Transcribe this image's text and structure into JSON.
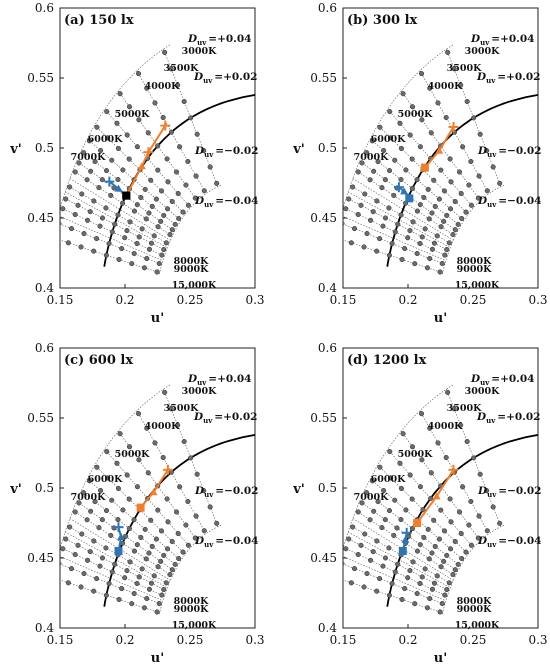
{
  "chart_data": [
    {
      "type": "scatter",
      "title": "(a) 150 lx",
      "xlabel": "u'",
      "ylabel": "v'",
      "xlim": [
        0.15,
        0.3
      ],
      "ylim": [
        0.4,
        0.6
      ],
      "xticks": [
        "0.15",
        "0.2",
        "0.25",
        "0.3"
      ],
      "yticks": [
        "0.4",
        "0.45",
        "0.5",
        "0.55",
        "0.6"
      ],
      "cct_labels": [
        "3000K",
        "3500K",
        "4000K",
        "5000K",
        "6000K",
        "7000K",
        "8000K",
        "9000K",
        "15,000K"
      ],
      "duv_labels": [
        "+0.04",
        "+0.02",
        "−0.02",
        "−0.04"
      ],
      "series": [
        {
          "color": "#f07f2d",
          "points": [
            {
              "u": 0.231,
              "v": 0.516,
              "marker": "plus"
            },
            {
              "u": 0.218,
              "v": 0.497,
              "marker": "plus"
            },
            {
              "u": 0.213,
              "v": 0.487,
              "marker": "triangle"
            }
          ],
          "end": {
            "u": 0.201,
            "v": 0.466,
            "marker": "square",
            "color": "#000000"
          }
        },
        {
          "color": "#2e75b6",
          "points": [
            {
              "u": 0.188,
              "v": 0.476,
              "marker": "plus"
            },
            {
              "u": 0.195,
              "v": 0.471,
              "marker": "triangle"
            }
          ],
          "end": {
            "u": 0.201,
            "v": 0.466,
            "marker": "square",
            "color": "#000000"
          }
        }
      ]
    },
    {
      "type": "scatter",
      "title": "(b) 300 lx",
      "xlabel": "u'",
      "ylabel": "v'",
      "xlim": [
        0.15,
        0.3
      ],
      "ylim": [
        0.4,
        0.6
      ],
      "xticks": [
        "0.15",
        "0.2",
        "0.25",
        "0.3"
      ],
      "yticks": [
        "0.4",
        "0.45",
        "0.5",
        "0.55",
        "0.6"
      ],
      "cct_labels": [
        "3000K",
        "3500K",
        "4000K",
        "5000K",
        "6000K",
        "7000K",
        "8000K",
        "9000K",
        "15,000K"
      ],
      "duv_labels": [
        "+0.04",
        "+0.02",
        "−0.02",
        "−0.04"
      ],
      "series": [
        {
          "color": "#f07f2d",
          "points": [
            {
              "u": 0.235,
              "v": 0.515,
              "marker": "plus"
            },
            {
              "u": 0.224,
              "v": 0.498,
              "marker": "triangle"
            }
          ],
          "end": {
            "u": 0.213,
            "v": 0.486,
            "marker": "square",
            "color": "#f07f2d"
          }
        },
        {
          "color": "#2e75b6",
          "points": [
            {
              "u": 0.193,
              "v": 0.472,
              "marker": "plus"
            },
            {
              "u": 0.197,
              "v": 0.469,
              "marker": "triangle"
            }
          ],
          "end": {
            "u": 0.201,
            "v": 0.464,
            "marker": "square",
            "color": "#2e75b6"
          }
        }
      ]
    },
    {
      "type": "scatter",
      "title": "(c) 600 lx",
      "xlabel": "u'",
      "ylabel": "v'",
      "xlim": [
        0.15,
        0.3
      ],
      "ylim": [
        0.4,
        0.6
      ],
      "xticks": [
        "0.15",
        "0.2",
        "0.25",
        "0.3"
      ],
      "yticks": [
        "0.4",
        "0.45",
        "0.5",
        "0.55",
        "0.6"
      ],
      "cct_labels": [
        "3000K",
        "3500K",
        "4000K",
        "5000K",
        "6000K",
        "7000K",
        "8000K",
        "9000K",
        "15,000K"
      ],
      "duv_labels": [
        "+0.04",
        "+0.02",
        "−0.02",
        "−0.04"
      ],
      "series": [
        {
          "color": "#f07f2d",
          "points": [
            {
              "u": 0.233,
              "v": 0.513,
              "marker": "plus"
            },
            {
              "u": 0.222,
              "v": 0.497,
              "marker": "triangle"
            }
          ],
          "end": {
            "u": 0.212,
            "v": 0.486,
            "marker": "square",
            "color": "#f07f2d"
          }
        },
        {
          "color": "#2e75b6",
          "points": [
            {
              "u": 0.195,
              "v": 0.472,
              "marker": "plus"
            },
            {
              "u": 0.197,
              "v": 0.465,
              "marker": "triangle"
            }
          ],
          "end": {
            "u": 0.195,
            "v": 0.455,
            "marker": "square",
            "color": "#2e75b6"
          }
        }
      ]
    },
    {
      "type": "scatter",
      "title": "(d) 1200 lx",
      "xlabel": "u'",
      "ylabel": "v'",
      "xlim": [
        0.15,
        0.3
      ],
      "ylim": [
        0.4,
        0.6
      ],
      "xticks": [
        "0.15",
        "0.2",
        "0.25",
        "0.3"
      ],
      "yticks": [
        "0.4",
        "0.45",
        "0.5",
        "0.55",
        "0.6"
      ],
      "cct_labels": [
        "3000K",
        "3500K",
        "4000K",
        "5000K",
        "6000K",
        "7000K",
        "8000K",
        "9000K",
        "15,000K"
      ],
      "duv_labels": [
        "+0.04",
        "+0.02",
        "−0.02",
        "−0.04"
      ],
      "series": [
        {
          "color": "#f07f2d",
          "points": [
            {
              "u": 0.235,
              "v": 0.513,
              "marker": "plus"
            },
            {
              "u": 0.222,
              "v": 0.494,
              "marker": "triangle"
            }
          ],
          "end": {
            "u": 0.207,
            "v": 0.475,
            "marker": "square",
            "color": "#f07f2d"
          }
        },
        {
          "color": "#2e75b6",
          "points": [
            {
              "u": 0.199,
              "v": 0.468,
              "marker": "plus"
            },
            {
              "u": 0.198,
              "v": 0.463,
              "marker": "triangle"
            }
          ],
          "end": {
            "u": 0.196,
            "v": 0.455,
            "marker": "square",
            "color": "#2e75b6"
          }
        }
      ]
    }
  ],
  "duv_symbol": "D",
  "duv_subscript": "uv"
}
